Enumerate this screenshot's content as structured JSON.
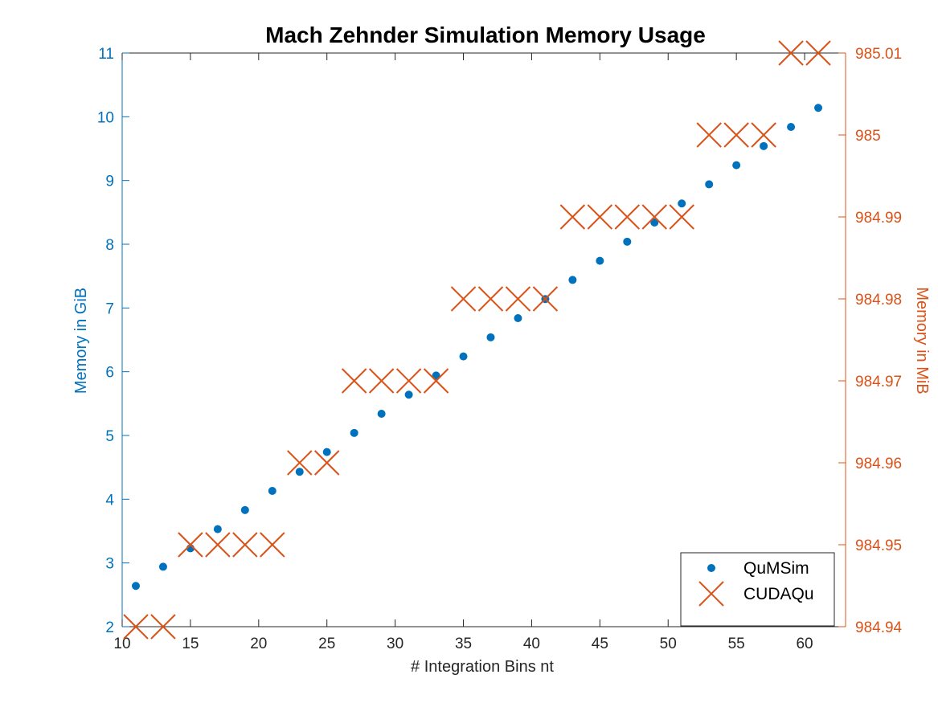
{
  "chart_data": {
    "type": "scatter",
    "title": "Mach Zehnder Simulation Memory Usage",
    "xlabel": "# Integration Bins nt",
    "ylabel_left": "Memory in GiB",
    "ylabel_right": "Memory in MiB",
    "xlim": [
      10,
      63
    ],
    "ylim_left": [
      2,
      11
    ],
    "ylim_right": [
      984.94,
      985.01
    ],
    "x_ticks": [
      "10",
      "15",
      "20",
      "25",
      "30",
      "35",
      "40",
      "45",
      "50",
      "55",
      "60"
    ],
    "y_ticks_left": [
      "2",
      "3",
      "4",
      "5",
      "6",
      "7",
      "8",
      "9",
      "10",
      "11"
    ],
    "y_ticks_right": [
      "984.94",
      "984.95",
      "984.96",
      "984.97",
      "984.98",
      "984.99",
      "985",
      "985.01"
    ],
    "grid": false,
    "legend_position": "bottom-right",
    "series": [
      {
        "name": "QuMSim",
        "axis": "left",
        "marker": "dot",
        "color": "#0072BD",
        "x": [
          11,
          13,
          15,
          17,
          19,
          21,
          23,
          25,
          27,
          29,
          31,
          33,
          35,
          37,
          39,
          41,
          43,
          45,
          47,
          49,
          51,
          53,
          55,
          57,
          59,
          61
        ],
        "y": [
          2.64,
          2.94,
          3.23,
          3.53,
          3.83,
          4.13,
          4.43,
          4.74,
          5.04,
          5.34,
          5.64,
          5.94,
          6.24,
          6.54,
          6.84,
          7.14,
          7.44,
          7.74,
          8.04,
          8.34,
          8.64,
          8.94,
          9.24,
          9.54,
          9.84,
          10.14
        ]
      },
      {
        "name": "CUDAQu",
        "axis": "right",
        "marker": "x",
        "color": "#D95319",
        "x": [
          11,
          13,
          15,
          17,
          19,
          21,
          23,
          25,
          27,
          29,
          31,
          33,
          35,
          37,
          39,
          41,
          43,
          45,
          47,
          49,
          51,
          53,
          55,
          57,
          59,
          61
        ],
        "y": [
          984.94,
          984.94,
          984.95,
          984.95,
          984.95,
          984.95,
          984.96,
          984.96,
          984.97,
          984.97,
          984.97,
          984.97,
          984.98,
          984.98,
          984.98,
          984.98,
          984.99,
          984.99,
          984.99,
          984.99,
          984.99,
          985.0,
          985.0,
          985.0,
          985.01,
          985.01
        ]
      }
    ]
  }
}
